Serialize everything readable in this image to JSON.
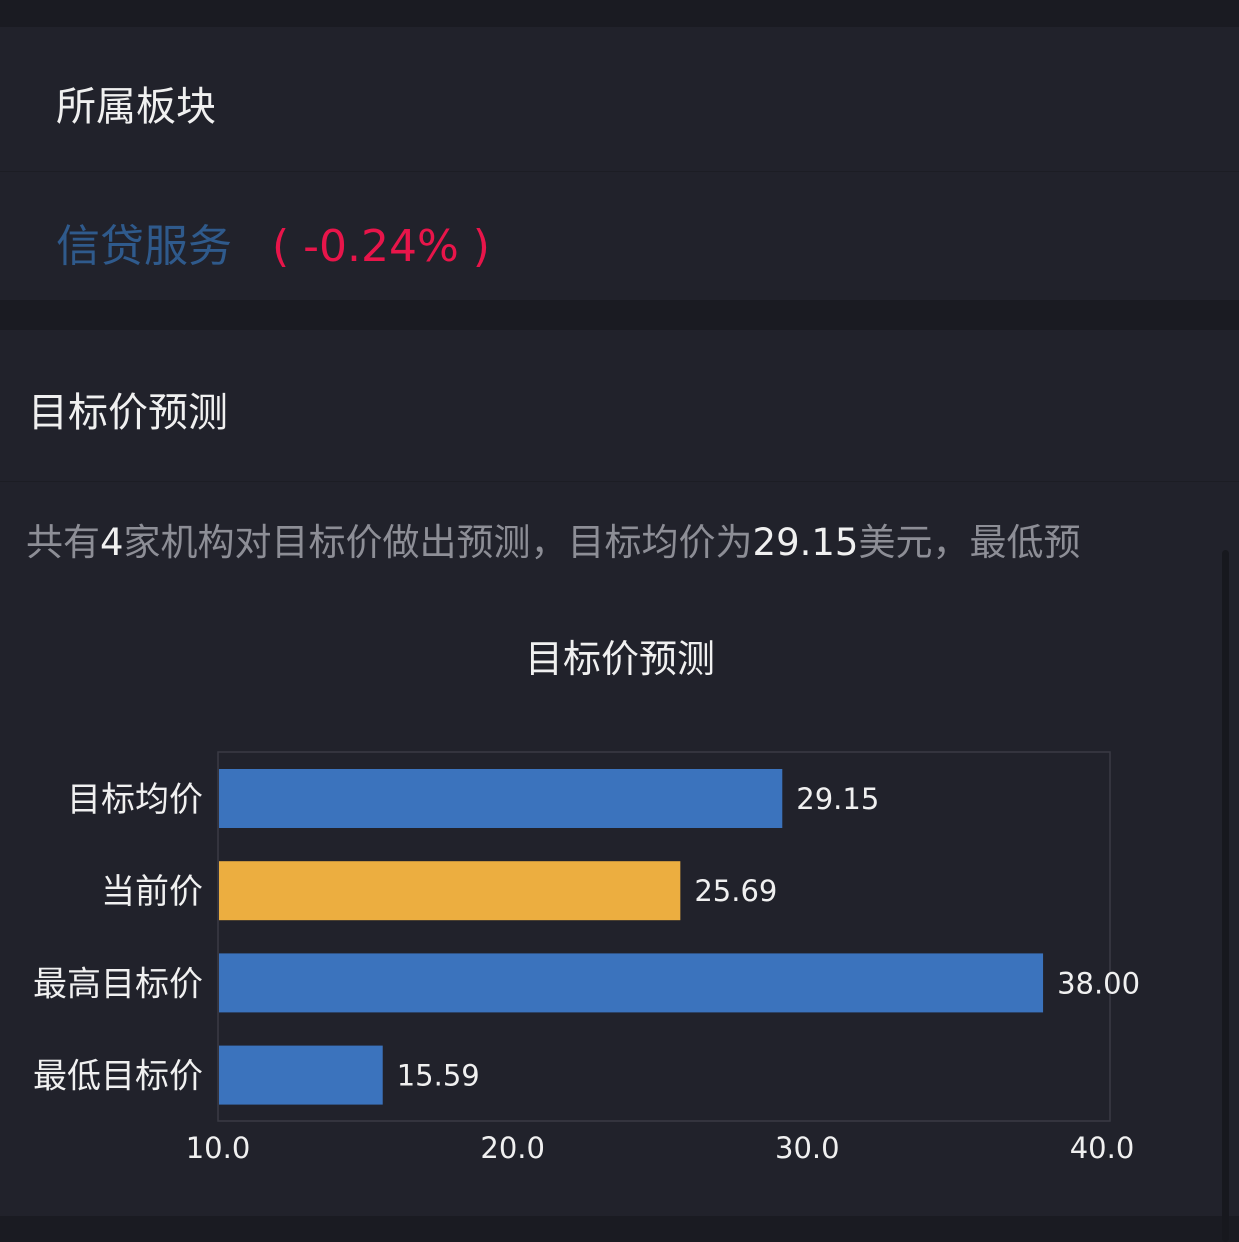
{
  "sector": {
    "title": "所属板块",
    "name": "信贷服务",
    "change": "( -0.24% )",
    "change_color": "#e8154a"
  },
  "forecast": {
    "title": "目标价预测",
    "summary_parts": [
      "共有",
      "4",
      "家机构对目标价做出预测，目标均价为",
      "29.15",
      "美元，最低预"
    ]
  },
  "chart_data": {
    "type": "bar",
    "orientation": "horizontal",
    "title": "目标价预测",
    "categories": [
      "目标均价",
      "当前价",
      "最高目标价",
      "最低目标价"
    ],
    "values": [
      29.15,
      25.69,
      38.0,
      15.59
    ],
    "data_labels": [
      "29.15",
      "25.69",
      "38.00",
      "15.59"
    ],
    "colors": [
      "#3b73bd",
      "#ecae40",
      "#3b73bd",
      "#3b73bd"
    ],
    "xlim": [
      10,
      40
    ],
    "xticks": [
      "10.0",
      "20.0",
      "30.0",
      "40.0"
    ],
    "grid": false
  }
}
